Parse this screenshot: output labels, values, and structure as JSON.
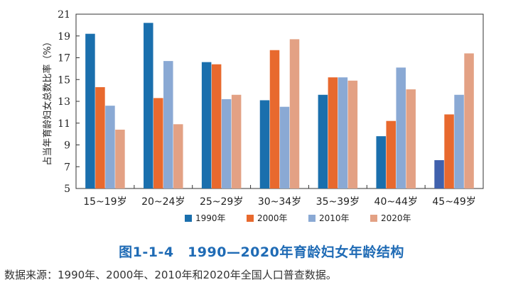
{
  "chart_data": {
    "type": "bar",
    "ylabel": "占当年育龄妇女总数比率（%）",
    "ylim": [
      5,
      21
    ],
    "yticks": [
      5,
      7,
      9,
      11,
      13,
      15,
      17,
      19,
      21
    ],
    "grid": false,
    "legend_position": "bottom",
    "categories": [
      "15~19岁",
      "20~24岁",
      "25~29岁",
      "30~34岁",
      "35~39岁",
      "40~44岁",
      "45~49岁"
    ],
    "series": [
      {
        "name": "1990年",
        "color": "#1a6fad",
        "values": [
          19.2,
          20.2,
          16.6,
          13.1,
          13.6,
          9.8,
          7.6
        ]
      },
      {
        "name": "2000年",
        "color": "#e8692e",
        "values": [
          14.3,
          13.3,
          16.4,
          17.7,
          15.2,
          11.2,
          11.8
        ]
      },
      {
        "name": "2010年",
        "color": "#8aa9d4",
        "values": [
          12.6,
          16.7,
          13.2,
          12.5,
          15.2,
          16.1,
          13.6
        ]
      },
      {
        "name": "2020年",
        "color": "#e3a184",
        "values": [
          10.4,
          10.9,
          13.6,
          18.7,
          14.9,
          14.1,
          17.4
        ]
      }
    ],
    "last_1990_color": "#4061ad"
  },
  "caption": "图1-1-4　1990—2020年育龄妇女年龄结构",
  "source": "数据来源：1990年、2000年、2010年和2020年全国人口普查数据。"
}
